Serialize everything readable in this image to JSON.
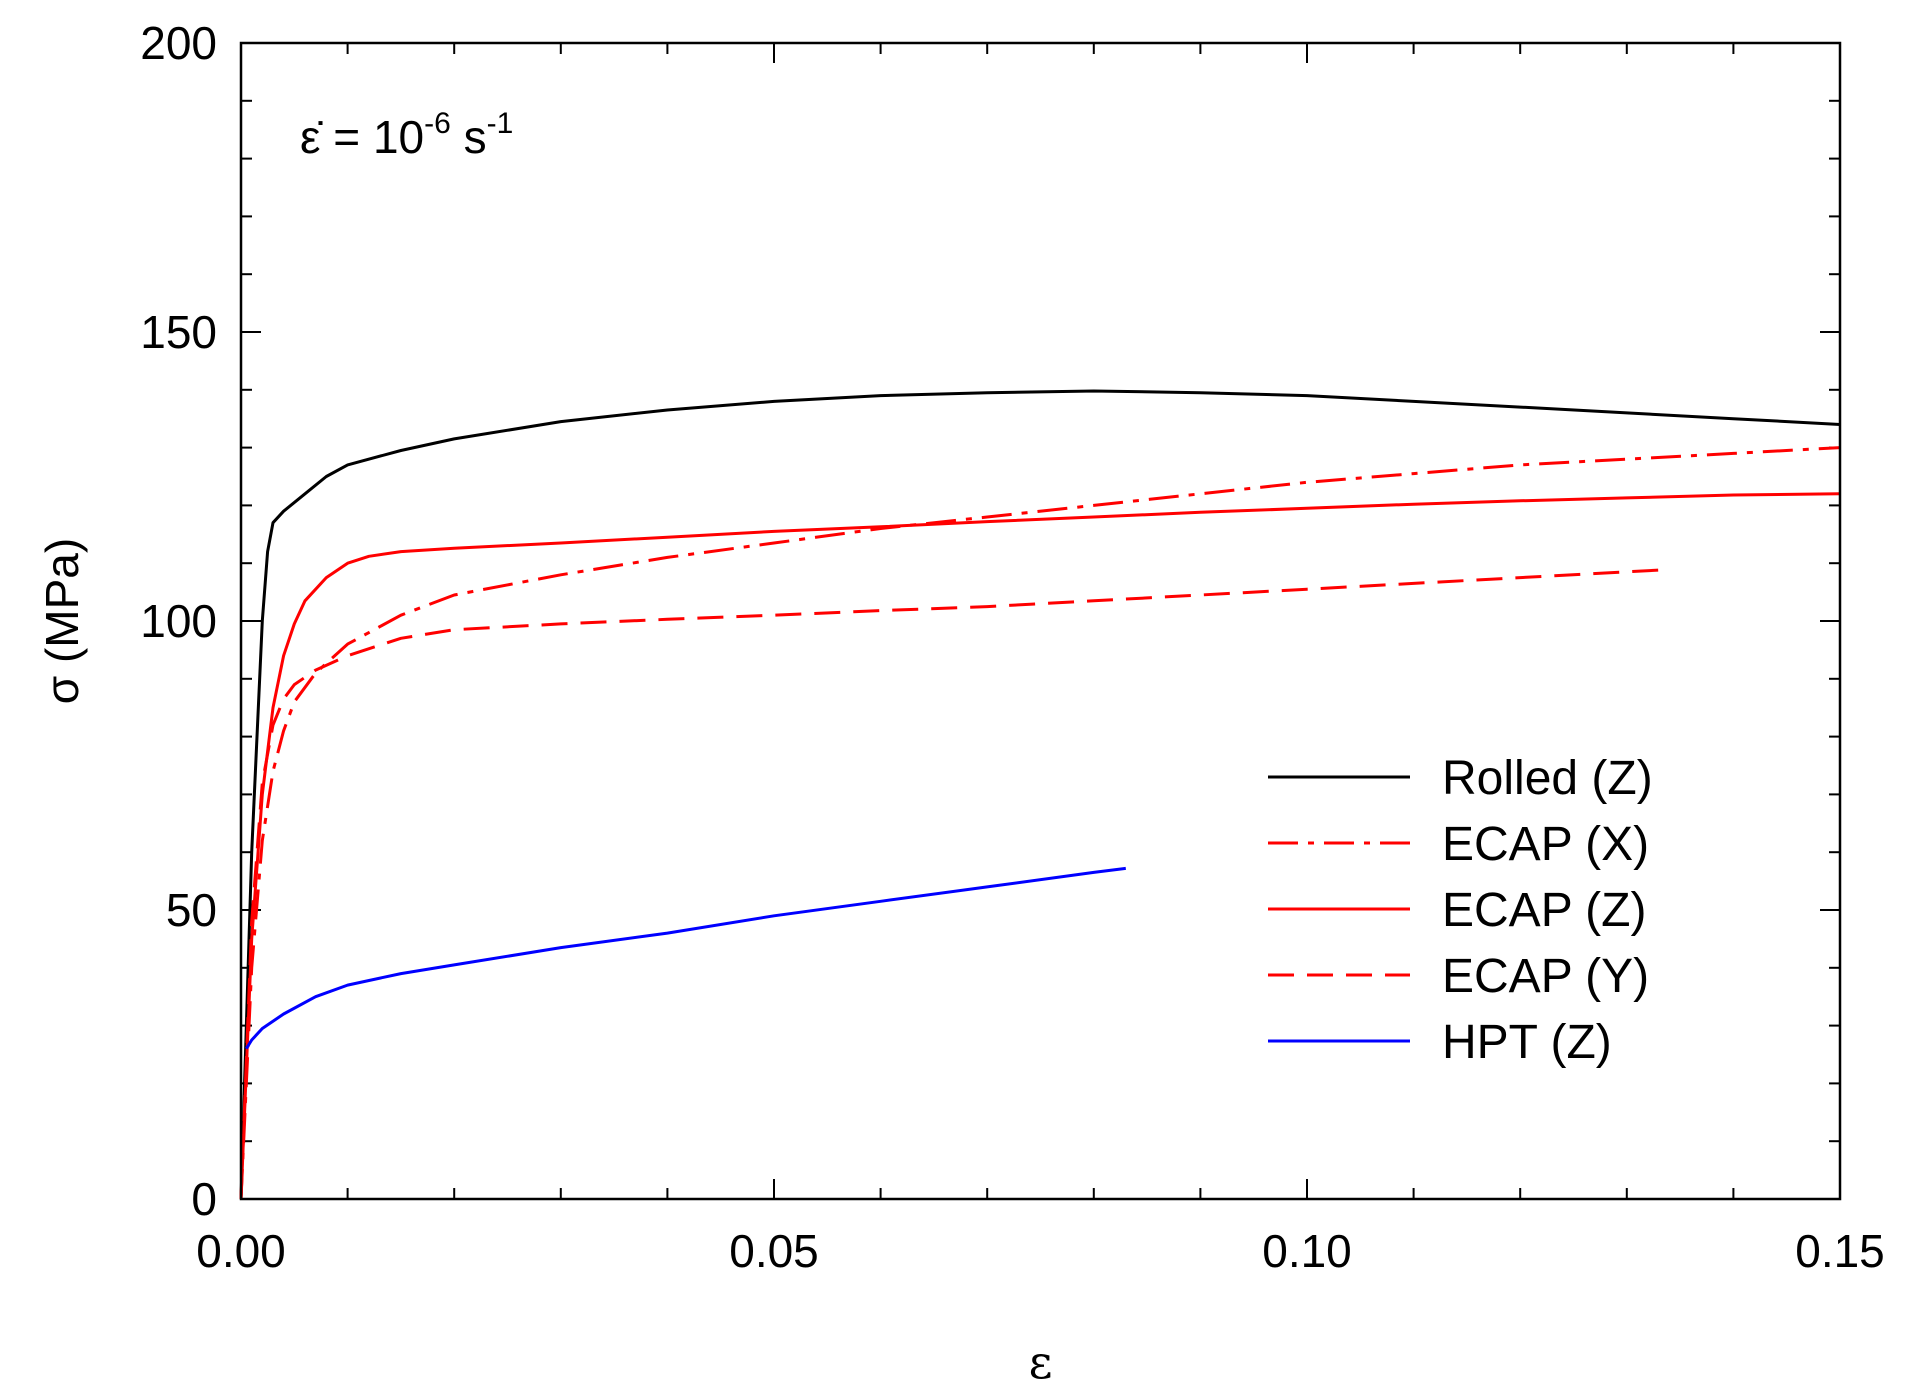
{
  "chart_data": {
    "type": "line",
    "title": "",
    "xlabel": "ε",
    "ylabel": "σ (MPa)",
    "xlim": [
      0,
      0.15
    ],
    "ylim": [
      0,
      200
    ],
    "xticks": [
      0,
      0.05,
      0.1,
      0.15
    ],
    "xtick_labels": [
      "0.00",
      "0.05",
      "0.10",
      "0.15"
    ],
    "yticks": [
      0,
      50,
      100,
      150,
      200
    ],
    "ytick_labels": [
      "0",
      "50",
      "100",
      "150",
      "200"
    ],
    "x_minor_step": 0.01,
    "y_minor_step": 10,
    "grid": false,
    "legend_position": "bottom-right",
    "annotation": {
      "symbol": "ε̇",
      "base": " = 10",
      "exp1": "-6",
      "unit": " s",
      "exp2": "-1"
    },
    "series": [
      {
        "name": "Rolled (Z)",
        "color": "#000000",
        "dash": "solid",
        "points": [
          [
            0,
            0
          ],
          [
            0.001,
            60
          ],
          [
            0.002,
            100
          ],
          [
            0.0025,
            112
          ],
          [
            0.003,
            117
          ],
          [
            0.004,
            119
          ],
          [
            0.006,
            122
          ],
          [
            0.008,
            125
          ],
          [
            0.01,
            127
          ],
          [
            0.015,
            129.5
          ],
          [
            0.02,
            131.5
          ],
          [
            0.03,
            134.5
          ],
          [
            0.04,
            136.5
          ],
          [
            0.05,
            138
          ],
          [
            0.06,
            139
          ],
          [
            0.07,
            139.5
          ],
          [
            0.08,
            139.8
          ],
          [
            0.09,
            139.5
          ],
          [
            0.1,
            139
          ],
          [
            0.11,
            138
          ],
          [
            0.12,
            137
          ],
          [
            0.13,
            136
          ],
          [
            0.14,
            135
          ],
          [
            0.15,
            134
          ]
        ]
      },
      {
        "name": "ECAP (X)",
        "color": "#ff0000",
        "dash": "dashdot",
        "points": [
          [
            0,
            0
          ],
          [
            0.001,
            40
          ],
          [
            0.002,
            62
          ],
          [
            0.003,
            74
          ],
          [
            0.004,
            81
          ],
          [
            0.005,
            86
          ],
          [
            0.007,
            91
          ],
          [
            0.01,
            96
          ],
          [
            0.015,
            101
          ],
          [
            0.02,
            104.5
          ],
          [
            0.03,
            108
          ],
          [
            0.04,
            111
          ],
          [
            0.05,
            113.5
          ],
          [
            0.06,
            116
          ],
          [
            0.07,
            118
          ],
          [
            0.08,
            120
          ],
          [
            0.09,
            122
          ],
          [
            0.1,
            124
          ],
          [
            0.11,
            125.5
          ],
          [
            0.12,
            127
          ],
          [
            0.13,
            128
          ],
          [
            0.14,
            129
          ],
          [
            0.15,
            130
          ]
        ]
      },
      {
        "name": "ECAP (Z)",
        "color": "#ff0000",
        "dash": "solid",
        "points": [
          [
            0,
            0
          ],
          [
            0.001,
            45
          ],
          [
            0.002,
            70
          ],
          [
            0.003,
            85
          ],
          [
            0.004,
            94
          ],
          [
            0.005,
            99.5
          ],
          [
            0.006,
            103.5
          ],
          [
            0.008,
            107.5
          ],
          [
            0.01,
            110
          ],
          [
            0.012,
            111.2
          ],
          [
            0.015,
            112
          ],
          [
            0.02,
            112.6
          ],
          [
            0.03,
            113.5
          ],
          [
            0.04,
            114.5
          ],
          [
            0.05,
            115.5
          ],
          [
            0.06,
            116.3
          ],
          [
            0.07,
            117.2
          ],
          [
            0.08,
            118
          ],
          [
            0.09,
            118.8
          ],
          [
            0.1,
            119.5
          ],
          [
            0.11,
            120.2
          ],
          [
            0.12,
            120.8
          ],
          [
            0.13,
            121.3
          ],
          [
            0.14,
            121.8
          ],
          [
            0.15,
            122
          ]
        ]
      },
      {
        "name": "ECAP (Y)",
        "color": "#ff0000",
        "dash": "dashed",
        "points": [
          [
            0,
            0
          ],
          [
            0.001,
            48
          ],
          [
            0.002,
            72
          ],
          [
            0.003,
            82
          ],
          [
            0.004,
            86.5
          ],
          [
            0.005,
            89
          ],
          [
            0.007,
            91.5
          ],
          [
            0.01,
            94
          ],
          [
            0.015,
            97
          ],
          [
            0.02,
            98.5
          ],
          [
            0.03,
            99.5
          ],
          [
            0.04,
            100.3
          ],
          [
            0.05,
            101
          ],
          [
            0.06,
            101.8
          ],
          [
            0.07,
            102.5
          ],
          [
            0.08,
            103.5
          ],
          [
            0.09,
            104.5
          ],
          [
            0.1,
            105.5
          ],
          [
            0.11,
            106.5
          ],
          [
            0.12,
            107.5
          ],
          [
            0.133,
            108.8
          ]
        ]
      },
      {
        "name": "HPT (Z)",
        "color": "#0000ff",
        "dash": "solid",
        "points": [
          [
            0.0005,
            26
          ],
          [
            0.001,
            27.5
          ],
          [
            0.002,
            29.5
          ],
          [
            0.004,
            32
          ],
          [
            0.007,
            35
          ],
          [
            0.01,
            37
          ],
          [
            0.015,
            39
          ],
          [
            0.02,
            40.5
          ],
          [
            0.03,
            43.5
          ],
          [
            0.04,
            46
          ],
          [
            0.05,
            49
          ],
          [
            0.06,
            51.5
          ],
          [
            0.07,
            54
          ],
          [
            0.08,
            56.5
          ],
          [
            0.083,
            57.2
          ]
        ]
      }
    ]
  }
}
